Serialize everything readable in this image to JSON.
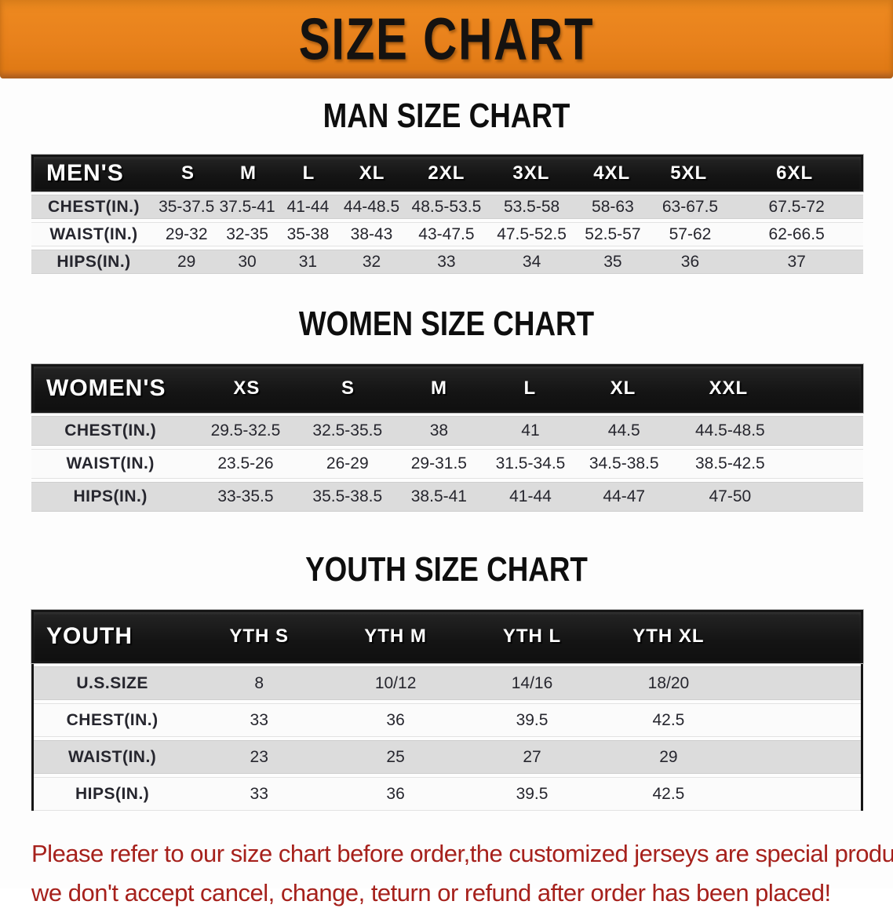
{
  "banner": {
    "title": "SIZE CHART",
    "bg_color": "#E8811C",
    "text_color": "#151210"
  },
  "colors": {
    "header_bar": "#161616",
    "row_alt_gray": "#DCDCDC",
    "row_white": "#FBFBFB",
    "table_text": "#26262E",
    "disclaimer_red": "#A6211C"
  },
  "men": {
    "heading": "MAN SIZE CHART",
    "corner": "MEN'S",
    "sizes": [
      "S",
      "M",
      "L",
      "XL",
      "2XL",
      "3XL",
      "4XL",
      "5XL",
      "6XL"
    ],
    "rows": [
      {
        "label": "CHEST(IN.)",
        "values": [
          "35-37.5",
          "37.5-41",
          "41-44",
          "44-48.5",
          "48.5-53.5",
          "53.5-58",
          "58-63",
          "63-67.5",
          "67.5-72"
        ]
      },
      {
        "label": "WAIST(IN.)",
        "values": [
          "29-32",
          "32-35",
          "35-38",
          "38-43",
          "43-47.5",
          "47.5-52.5",
          "52.5-57",
          "57-62",
          "62-66.5"
        ]
      },
      {
        "label": "HIPS(IN.)",
        "values": [
          "29",
          "30",
          "31",
          "32",
          "33",
          "34",
          "35",
          "36",
          "37"
        ]
      }
    ]
  },
  "women": {
    "heading": "WOMEN SIZE CHART",
    "corner": "WOMEN'S",
    "sizes": [
      "XS",
      "S",
      "M",
      "L",
      "XL",
      "XXL"
    ],
    "rows": [
      {
        "label": "CHEST(IN.)",
        "values": [
          "29.5-32.5",
          "32.5-35.5",
          "38",
          "41",
          "44.5",
          "44.5-48.5"
        ]
      },
      {
        "label": "WAIST(IN.)",
        "values": [
          "23.5-26",
          "26-29",
          "29-31.5",
          "31.5-34.5",
          "34.5-38.5",
          "38.5-42.5"
        ]
      },
      {
        "label": "HIPS(IN.)",
        "values": [
          "33-35.5",
          "35.5-38.5",
          "38.5-41",
          "41-44",
          "44-47",
          "47-50"
        ]
      }
    ]
  },
  "youth": {
    "heading": "YOUTH SIZE CHART",
    "corner": "YOUTH",
    "sizes": [
      "YTH S",
      "YTH M",
      "YTH L",
      "YTH XL"
    ],
    "rows": [
      {
        "label": "U.S.SIZE",
        "values": [
          "8",
          "10/12",
          "14/16",
          "18/20"
        ]
      },
      {
        "label": "CHEST(IN.)",
        "values": [
          "33",
          "36",
          "39.5",
          "42.5"
        ]
      },
      {
        "label": "WAIST(IN.)",
        "values": [
          "23",
          "25",
          "27",
          "29"
        ]
      },
      {
        "label": "HIPS(IN.)",
        "values": [
          "33",
          "36",
          "39.5",
          "42.5"
        ]
      }
    ]
  },
  "disclaimer": {
    "line1": "Please refer to our size chart before order,the customized jerseys are special products,",
    "line2": "we don't accept cancel, change, teturn or refund after order has been placed!"
  }
}
